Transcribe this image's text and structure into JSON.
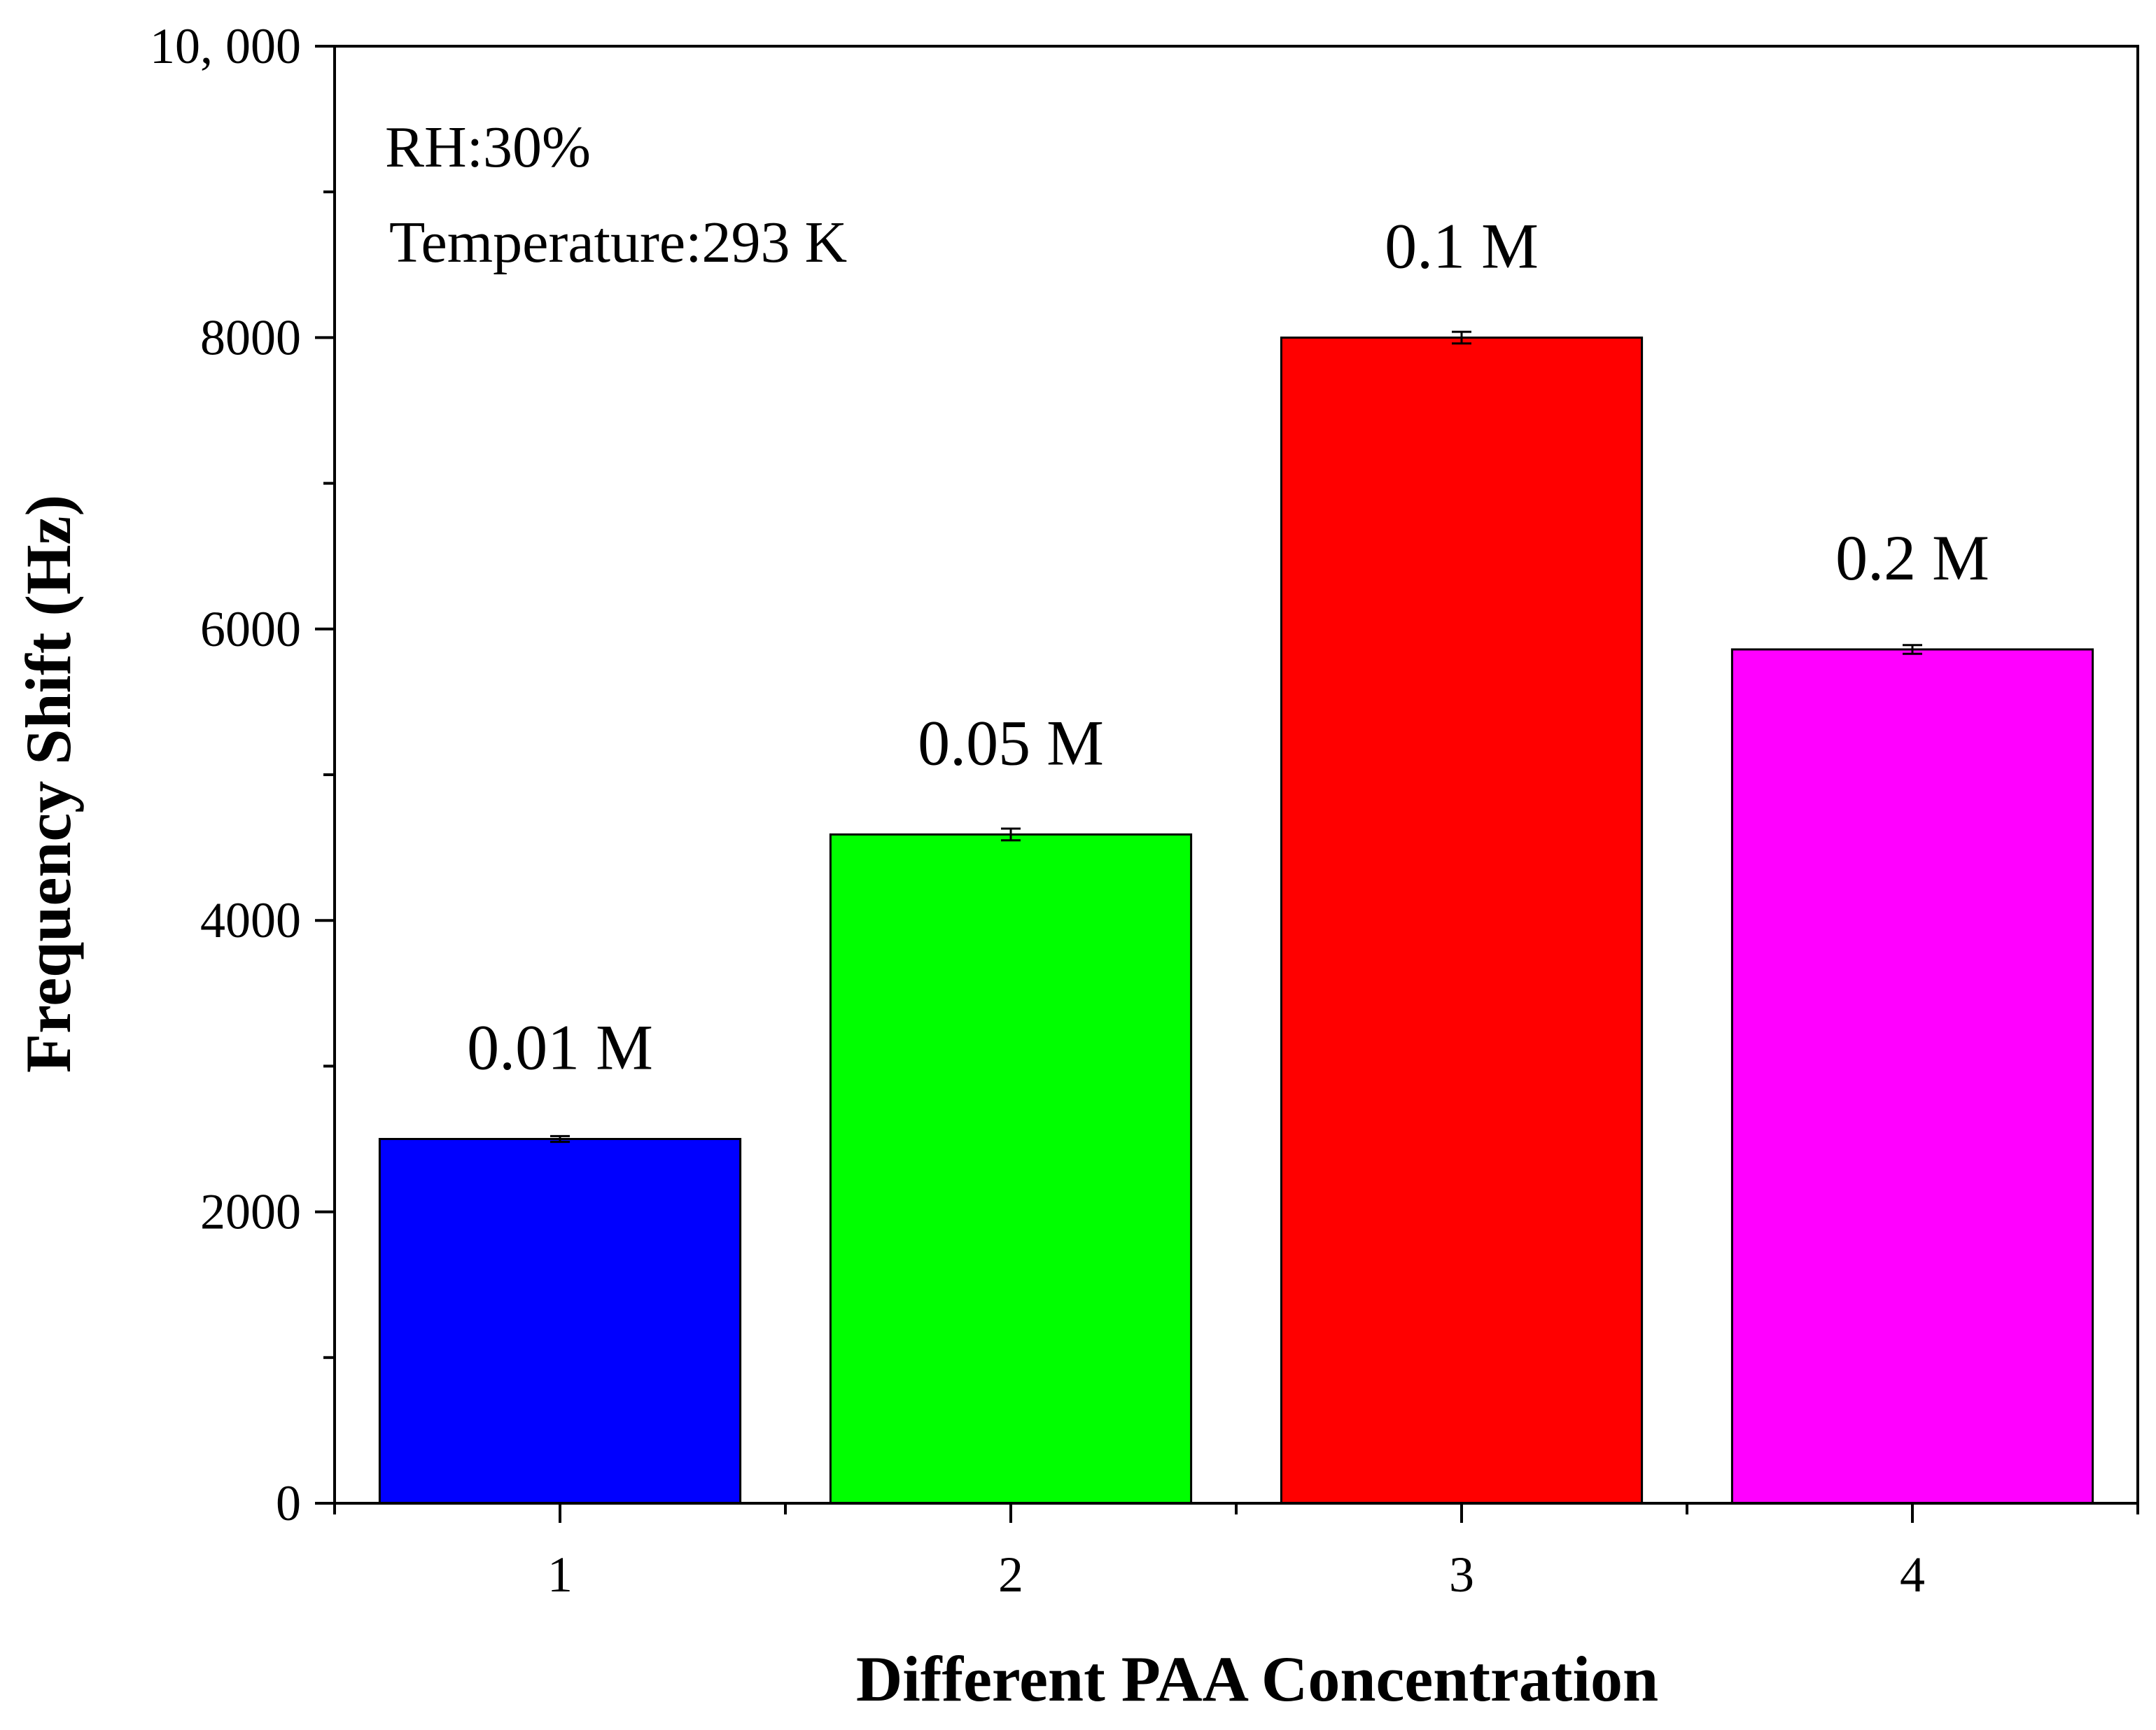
{
  "chart_data": {
    "type": "bar",
    "categories": [
      "1",
      "2",
      "3",
      "4"
    ],
    "values": [
      2500,
      4590,
      8000,
      5860
    ],
    "errors": [
      20,
      40,
      40,
      30
    ],
    "bar_labels": [
      "0.01 M",
      "0.05 M",
      "0.1 M",
      "0.2 M"
    ],
    "bar_colors": [
      "#0000ff",
      "#00ff00",
      "#ff0000",
      "#ff00ff"
    ],
    "xlabel": "Different PAA Concentration",
    "ylabel": "Frequency Shift (Hz)",
    "ylim": [
      0,
      10000
    ],
    "xlim": [
      0.5,
      4.5
    ],
    "yticks": [
      0,
      2000,
      4000,
      6000,
      8000,
      10000
    ],
    "ytick_labels": [
      "0",
      "2000",
      "4000",
      "6000",
      "8000",
      "10, 000"
    ],
    "annotations": [
      "RH:30%",
      "Temperature:293 K"
    ],
    "grid": false,
    "legend": "none"
  }
}
